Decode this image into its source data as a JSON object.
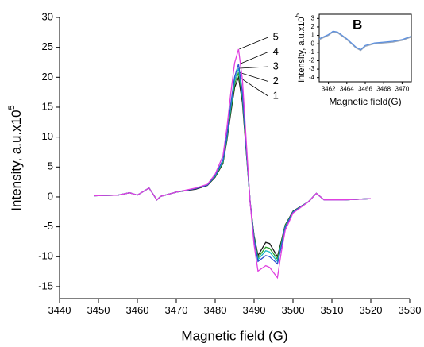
{
  "chart_data": [
    {
      "type": "line",
      "x_label": "Magnetic field (G)",
      "y_label": "Intensity, a.u.x10",
      "y_label_exponent": "5",
      "xlim": [
        3440,
        3530
      ],
      "xticks": [
        3440,
        3450,
        3460,
        3470,
        3480,
        3490,
        3500,
        3510,
        3520,
        3530
      ],
      "ylim": [
        -17,
        30
      ],
      "yticks": [
        -15,
        -10,
        -5,
        0,
        5,
        10,
        15,
        20,
        25,
        30
      ],
      "x": [
        3449,
        3455,
        3458,
        3460,
        3463,
        3465,
        3466,
        3470,
        3475,
        3478,
        3480,
        3482,
        3483,
        3484,
        3485,
        3486,
        3487,
        3488,
        3489,
        3490,
        3491,
        3493,
        3494,
        3496,
        3497,
        3498,
        3500,
        3504,
        3506,
        3508,
        3513,
        3520
      ],
      "series": [
        {
          "name": "1",
          "color": "#1a1a1a",
          "values": [
            0.2,
            0.3,
            0.7,
            0.3,
            1.5,
            -0.5,
            0.1,
            0.8,
            1.3,
            1.9,
            3.3,
            5.6,
            9.4,
            14,
            18.3,
            20,
            15.8,
            7.4,
            -0.9,
            -6.5,
            -9.8,
            -7.6,
            -7.8,
            -10,
            -7.4,
            -4.7,
            -2.4,
            -0.8,
            0.6,
            -0.5,
            -0.5,
            -0.3
          ]
        },
        {
          "name": "2",
          "color": "#2ca02c",
          "values": [
            0.2,
            0.3,
            0.7,
            0.3,
            1.5,
            -0.5,
            0.1,
            0.8,
            1.4,
            2,
            3.4,
            5.8,
            9.7,
            14.5,
            18.9,
            20.8,
            16.5,
            7.8,
            -1,
            -6.8,
            -10.2,
            -8.4,
            -8.6,
            -10.4,
            -7.7,
            -4.8,
            -2.5,
            -0.8,
            0.6,
            -0.5,
            -0.5,
            -0.3
          ]
        },
        {
          "name": "3",
          "color": "#17b5c4",
          "values": [
            0.2,
            0.3,
            0.7,
            0.3,
            1.5,
            -0.5,
            0.1,
            0.8,
            1.4,
            2,
            3.5,
            6,
            10,
            15,
            19.5,
            21.5,
            17,
            8,
            -1,
            -7,
            -10.5,
            -9,
            -9.2,
            -10.8,
            -8,
            -5,
            -2.5,
            -0.8,
            0.6,
            -0.5,
            -0.5,
            -0.3
          ]
        },
        {
          "name": "4",
          "color": "#3050d0",
          "values": [
            0.2,
            0.3,
            0.7,
            0.3,
            1.5,
            -0.5,
            0.1,
            0.8,
            1.4,
            2,
            3.6,
            6.2,
            10.3,
            15.5,
            20.1,
            22.2,
            17.5,
            8.2,
            -1,
            -7.2,
            -10.8,
            -9.8,
            -10,
            -11.2,
            -8.3,
            -5.1,
            -2.6,
            -0.8,
            0.6,
            -0.5,
            -0.5,
            -0.3
          ]
        },
        {
          "name": "5",
          "color": "#e040e0",
          "values": [
            0.2,
            0.3,
            0.7,
            0.3,
            1.5,
            -0.5,
            0.1,
            0.8,
            1.5,
            2.1,
            3.8,
            6.9,
            11.5,
            17.3,
            22.4,
            24.7,
            19.6,
            9.2,
            -1.1,
            -8,
            -12.4,
            -11.5,
            -11.8,
            -13.5,
            -9.2,
            -5.6,
            -2.7,
            -0.8,
            0.6,
            -0.5,
            -0.5,
            -0.3
          ]
        }
      ]
    },
    {
      "type": "line",
      "title": "B",
      "x_label": "Magnetic field(G)",
      "y_label": "Intensity, a.u.x10",
      "y_label_exponent": "5",
      "xlim": [
        3461,
        3471
      ],
      "xticks": [
        3462,
        3464,
        3466,
        3468,
        3470
      ],
      "ylim": [
        -4.5,
        3.5
      ],
      "yticks": [
        -4,
        -3,
        -2,
        -1,
        0,
        1,
        2,
        3
      ],
      "x": [
        3461,
        3462,
        3462.5,
        3463,
        3464,
        3465,
        3465.5,
        3466,
        3467,
        3468,
        3469,
        3470,
        3471
      ],
      "series": [
        {
          "color": "#9aa6b8",
          "values": [
            0.5,
            1,
            1.4,
            1.3,
            0.5,
            -0.5,
            -0.8,
            -0.3,
            0,
            0.1,
            0.2,
            0.4,
            0.8
          ]
        },
        {
          "color": "#5a8fe0",
          "values": [
            0.6,
            1.1,
            1.5,
            1.4,
            0.6,
            -0.4,
            -0.7,
            -0.2,
            0.1,
            0.2,
            0.3,
            0.5,
            0.9
          ]
        }
      ]
    }
  ]
}
